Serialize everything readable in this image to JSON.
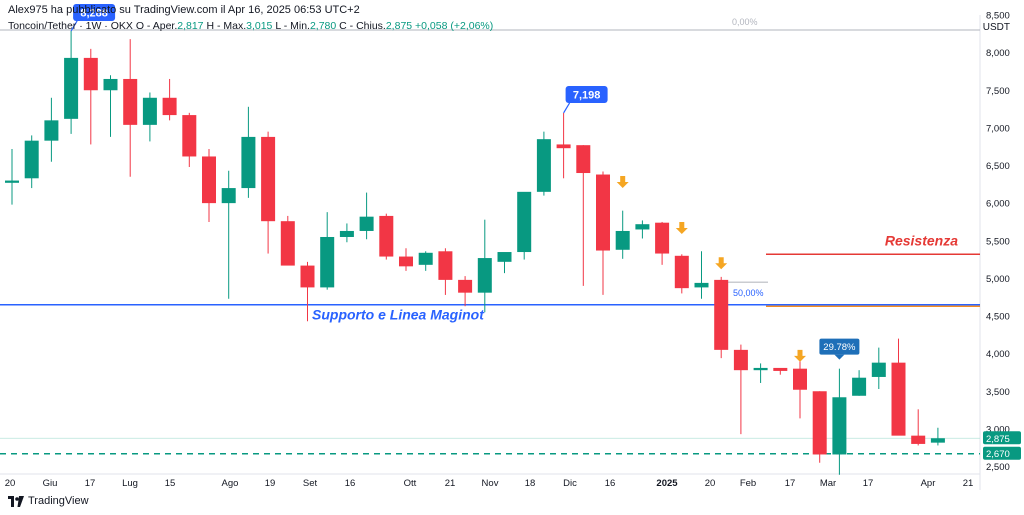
{
  "header": {
    "publisher_line": "Alex975 ha pubblicato su TradingView.com il Apr 16, 2025 06:53 UTC+2",
    "symbol": "Toncoin/Tether · 1W · OKX",
    "open_label": "O - Aper.",
    "open_value": "2,817",
    "high_label": "H - Max.",
    "high_value": "3,015",
    "low_label": "L - Min.",
    "low_value": "2,780",
    "close_label": "C - Chius.",
    "close_value": "2,875",
    "change_value": "+0,058 (+2,06%)"
  },
  "axis": {
    "unit": "USDT"
  },
  "footer": {
    "brand": "TradingView",
    "logo_icon": "tradingview-logo-icon"
  },
  "colors": {
    "up": "#089981",
    "down": "#f23645",
    "support": "#2962ff",
    "resistance": "#e53935",
    "orange_level": "#f57c00",
    "arrow": "#f5a623",
    "callout": "#2962ff"
  },
  "chart_data": {
    "type": "candlestick",
    "ylim": [
      2.5,
      8.5
    ],
    "y_ticks": [
      "2,500",
      "3,000",
      "3,500",
      "4,000",
      "4,500",
      "5,000",
      "5,500",
      "6,000",
      "6,500",
      "7,000",
      "7,500",
      "8,000",
      "8,500"
    ],
    "x_ticks": [
      "20",
      "Giu",
      "17",
      "Lug",
      "15",
      "Ago",
      "19",
      "Set",
      "16",
      "Ott",
      "21",
      "Nov",
      "18",
      "Dic",
      "16",
      "2025",
      "20",
      "Feb",
      "17",
      "Mar",
      "17",
      "Apr",
      "21"
    ],
    "candles": [
      {
        "o": 6.27,
        "h": 6.72,
        "l": 5.98,
        "c": 6.3
      },
      {
        "o": 6.33,
        "h": 6.9,
        "l": 6.2,
        "c": 6.83
      },
      {
        "o": 6.83,
        "h": 7.4,
        "l": 6.55,
        "c": 7.1
      },
      {
        "o": 7.12,
        "h": 8.288,
        "l": 6.92,
        "c": 7.93
      },
      {
        "o": 7.93,
        "h": 8.05,
        "l": 6.78,
        "c": 7.5
      },
      {
        "o": 7.5,
        "h": 7.7,
        "l": 6.88,
        "c": 7.65
      },
      {
        "o": 7.65,
        "h": 8.18,
        "l": 6.35,
        "c": 7.04
      },
      {
        "o": 7.04,
        "h": 7.47,
        "l": 6.82,
        "c": 7.4
      },
      {
        "o": 7.4,
        "h": 7.65,
        "l": 7.1,
        "c": 7.17
      },
      {
        "o": 7.17,
        "h": 7.2,
        "l": 6.48,
        "c": 6.62
      },
      {
        "o": 6.62,
        "h": 6.72,
        "l": 5.75,
        "c": 6.0
      },
      {
        "o": 6.0,
        "h": 6.43,
        "l": 4.73,
        "c": 6.2
      },
      {
        "o": 6.2,
        "h": 7.28,
        "l": 6.07,
        "c": 6.88
      },
      {
        "o": 6.88,
        "h": 6.95,
        "l": 5.33,
        "c": 5.76
      },
      {
        "o": 5.76,
        "h": 5.83,
        "l": 5.2,
        "c": 5.17
      },
      {
        "o": 5.17,
        "h": 5.22,
        "l": 4.43,
        "c": 4.88
      },
      {
        "o": 4.88,
        "h": 5.88,
        "l": 4.85,
        "c": 5.55
      },
      {
        "o": 5.55,
        "h": 5.73,
        "l": 5.48,
        "c": 5.63
      },
      {
        "o": 5.63,
        "h": 6.14,
        "l": 5.52,
        "c": 5.82
      },
      {
        "o": 5.83,
        "h": 5.86,
        "l": 5.25,
        "c": 5.29
      },
      {
        "o": 5.29,
        "h": 5.4,
        "l": 5.1,
        "c": 5.16
      },
      {
        "o": 5.18,
        "h": 5.36,
        "l": 5.1,
        "c": 5.34
      },
      {
        "o": 5.36,
        "h": 5.4,
        "l": 4.78,
        "c": 4.98
      },
      {
        "o": 4.98,
        "h": 5.03,
        "l": 4.63,
        "c": 4.81
      },
      {
        "o": 4.81,
        "h": 5.78,
        "l": 4.55,
        "c": 5.27
      },
      {
        "o": 5.22,
        "h": 5.34,
        "l": 5.07,
        "c": 5.35
      },
      {
        "o": 5.35,
        "h": 6.13,
        "l": 5.25,
        "c": 6.15
      },
      {
        "o": 6.15,
        "h": 6.95,
        "l": 6.1,
        "c": 6.85
      },
      {
        "o": 6.78,
        "h": 7.198,
        "l": 6.33,
        "c": 6.73
      },
      {
        "o": 6.77,
        "h": 6.77,
        "l": 4.9,
        "c": 6.4
      },
      {
        "o": 6.38,
        "h": 6.42,
        "l": 4.78,
        "c": 5.37
      },
      {
        "o": 5.38,
        "h": 5.9,
        "l": 5.26,
        "c": 5.63
      },
      {
        "o": 5.65,
        "h": 5.77,
        "l": 5.53,
        "c": 5.72
      },
      {
        "o": 5.74,
        "h": 5.75,
        "l": 5.18,
        "c": 5.33
      },
      {
        "o": 5.3,
        "h": 5.32,
        "l": 4.8,
        "c": 4.87
      },
      {
        "o": 4.88,
        "h": 5.36,
        "l": 4.73,
        "c": 4.94
      },
      {
        "o": 4.98,
        "h": 5.02,
        "l": 3.94,
        "c": 4.05
      },
      {
        "o": 4.05,
        "h": 4.12,
        "l": 2.93,
        "c": 3.78
      },
      {
        "o": 3.78,
        "h": 3.87,
        "l": 3.61,
        "c": 3.81
      },
      {
        "o": 3.81,
        "h": 3.8,
        "l": 3.72,
        "c": 3.77
      },
      {
        "o": 3.8,
        "h": 3.92,
        "l": 3.14,
        "c": 3.52
      },
      {
        "o": 3.5,
        "h": 3.5,
        "l": 2.55,
        "c": 2.66
      },
      {
        "o": 2.66,
        "h": 3.8,
        "l": 2.39,
        "c": 3.42
      },
      {
        "o": 3.44,
        "h": 3.78,
        "l": 3.44,
        "c": 3.68
      },
      {
        "o": 3.69,
        "h": 4.08,
        "l": 3.53,
        "c": 3.88
      },
      {
        "o": 3.88,
        "h": 4.2,
        "l": 2.92,
        "c": 2.91
      },
      {
        "o": 2.91,
        "h": 3.26,
        "l": 2.78,
        "c": 2.8
      },
      {
        "o": 2.817,
        "h": 3.015,
        "l": 2.78,
        "c": 2.875
      }
    ],
    "levels": [
      {
        "name": "Supporto e Linea Maginot",
        "value": 4.65
      },
      {
        "name": "Resistenza",
        "value": 5.32
      },
      {
        "name": "50,00%",
        "value": 4.63
      },
      {
        "name": "0,00%",
        "value": 8.3
      },
      {
        "name": "low",
        "value": 2.67
      }
    ],
    "annotations": {
      "support_label": "Supporto e Linea Maginot",
      "resistance_label": "Resistenza",
      "fib_50_label": "50,00%",
      "fib_0_label": "0,00%",
      "peak_1": "8,288",
      "peak_2": "7,198",
      "pct_callout": "29.78%",
      "last_price": "2,875",
      "low_price": "2,670"
    }
  }
}
